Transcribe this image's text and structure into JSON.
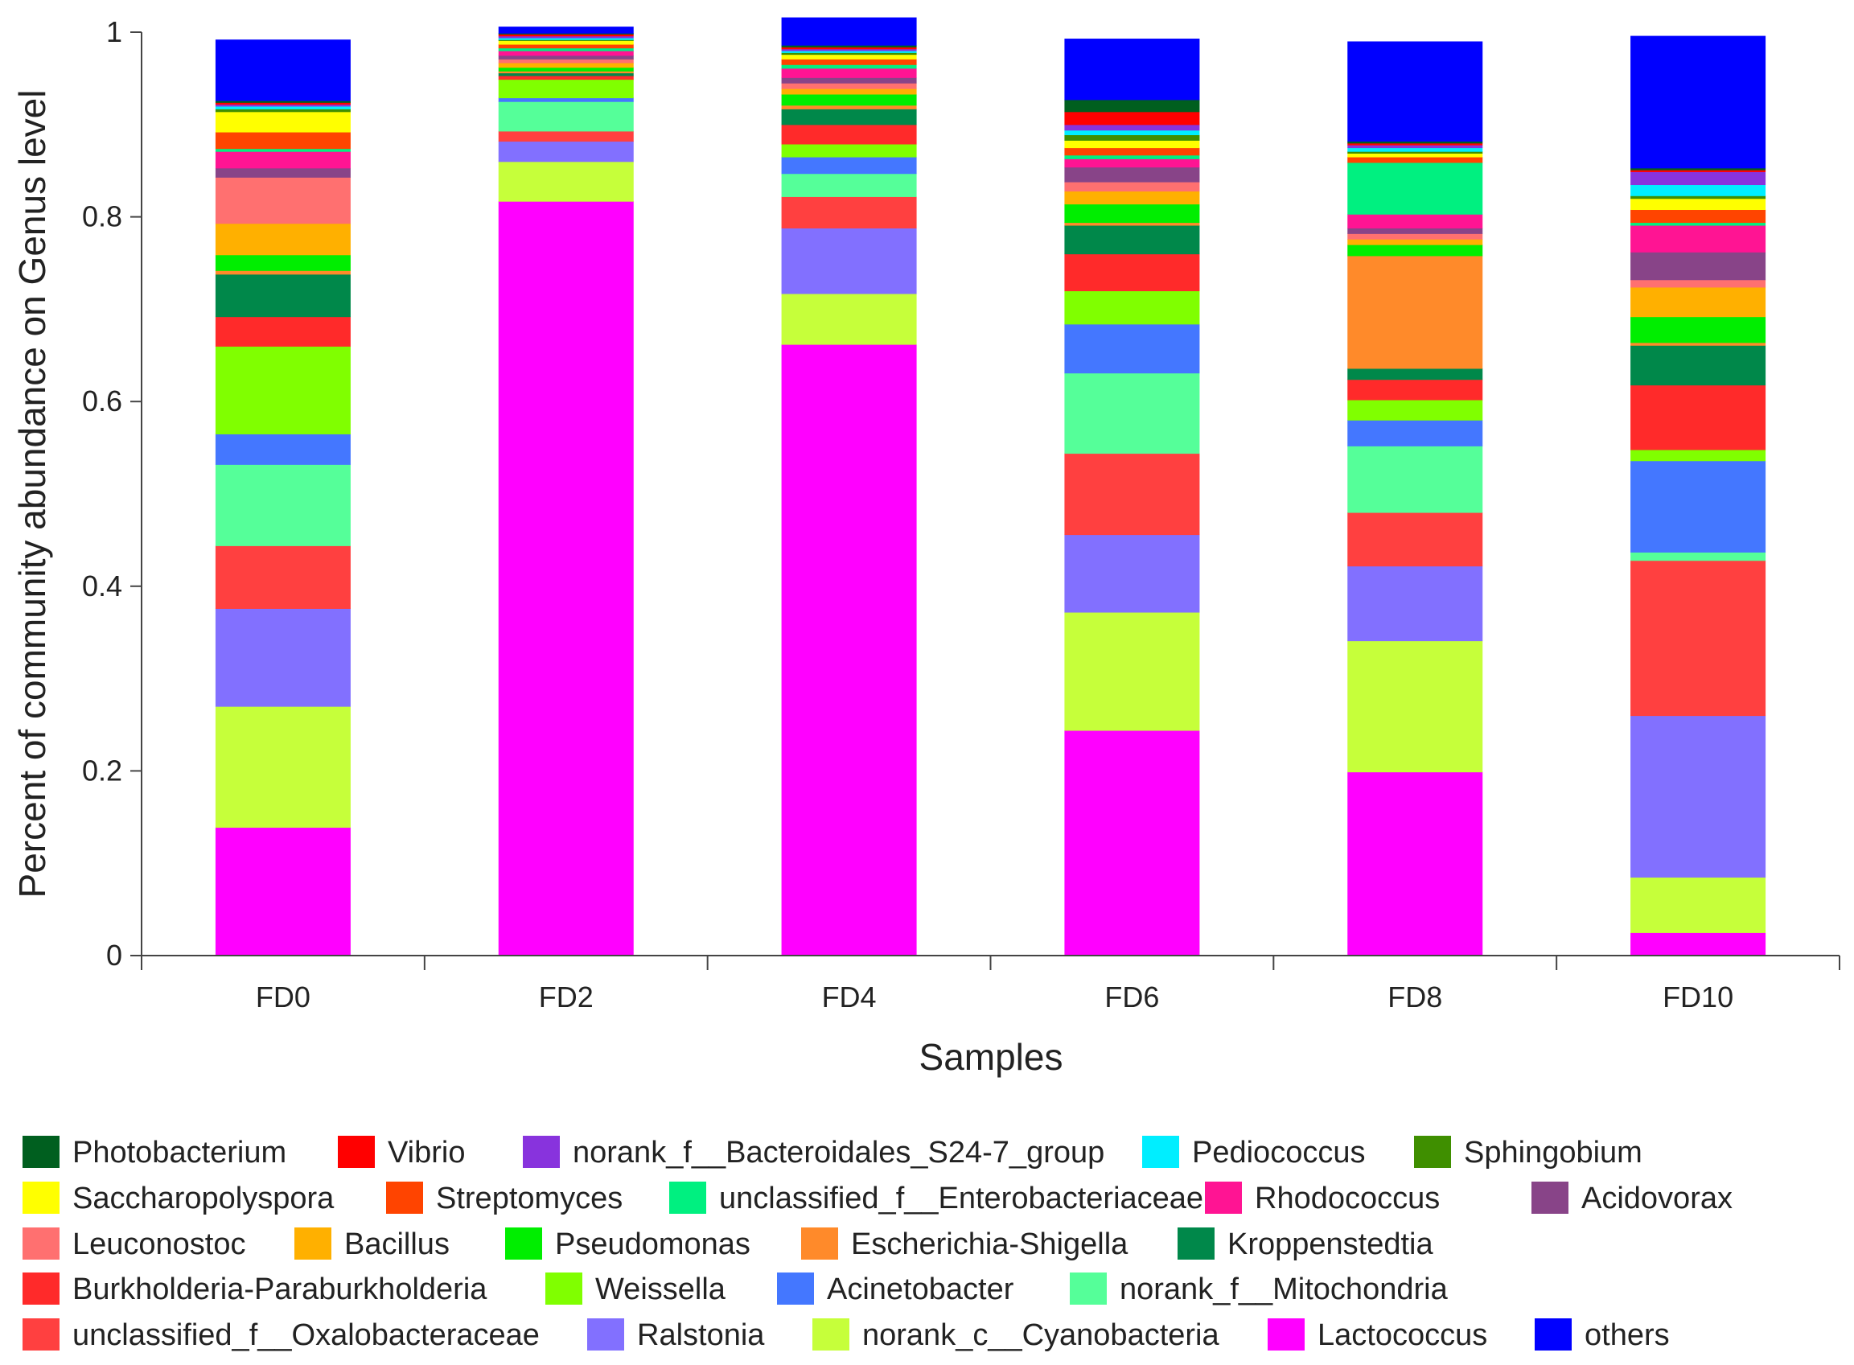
{
  "chart_data": {
    "type": "bar",
    "stacked": true,
    "title": "",
    "xlabel": "Samples",
    "ylabel": "Percent of community abundance on Genus level",
    "ylim": [
      0,
      1
    ],
    "yticks": [
      "0",
      "0.2",
      "0.4",
      "0.6",
      "0.8",
      "1"
    ],
    "ytick_values": [
      0,
      0.2,
      0.4,
      0.6,
      0.8,
      1
    ],
    "categories": [
      "FD0",
      "FD2",
      "FD4",
      "FD6",
      "FD8",
      "FD10"
    ],
    "legend_position": "bottom",
    "series": [
      {
        "name": "Lactococcus",
        "color": "#FF00FF",
        "values": [
          0.139,
          0.817,
          0.662,
          0.244,
          0.199,
          0.025
        ]
      },
      {
        "name": "norank_c__Cyanobacteria",
        "color": "#C6FF3A",
        "values": [
          0.131,
          0.043,
          0.055,
          0.128,
          0.142,
          0.06
        ]
      },
      {
        "name": "Ralstonia",
        "color": "#8270FF",
        "values": [
          0.106,
          0.022,
          0.071,
          0.084,
          0.081,
          0.175
        ]
      },
      {
        "name": "unclassified_f__Oxalobacteraceae",
        "color": "#FF4040",
        "values": [
          0.068,
          0.011,
          0.034,
          0.088,
          0.058,
          0.168
        ]
      },
      {
        "name": "norank_f__Mitochondria",
        "color": "#55FF99",
        "values": [
          0.088,
          0.032,
          0.025,
          0.087,
          0.072,
          0.009
        ]
      },
      {
        "name": "Acinetobacter",
        "color": "#4477FF",
        "values": [
          0.033,
          0.004,
          0.018,
          0.053,
          0.028,
          0.099
        ]
      },
      {
        "name": "Weissella",
        "color": "#80FF00",
        "values": [
          0.095,
          0.02,
          0.014,
          0.036,
          0.022,
          0.012
        ]
      },
      {
        "name": "Burkholderia-Paraburkholderia",
        "color": "#FF2A2A",
        "values": [
          0.032,
          0.004,
          0.021,
          0.04,
          0.022,
          0.07
        ]
      },
      {
        "name": "Kroppenstedtia",
        "color": "#00884A",
        "values": [
          0.046,
          0.003,
          0.017,
          0.031,
          0.012,
          0.043
        ]
      },
      {
        "name": "Escherichia-Shigella",
        "color": "#FF8A2A",
        "values": [
          0.004,
          0.002,
          0.004,
          0.003,
          0.122,
          0.003
        ]
      },
      {
        "name": "Pseudomonas",
        "color": "#00EE00",
        "values": [
          0.017,
          0.004,
          0.012,
          0.02,
          0.012,
          0.028
        ]
      },
      {
        "name": "Bacillus",
        "color": "#FFB000",
        "values": [
          0.034,
          0.005,
          0.006,
          0.014,
          0.006,
          0.032
        ]
      },
      {
        "name": "Leuconostoc",
        "color": "#FF7070",
        "values": [
          0.05,
          0.004,
          0.006,
          0.01,
          0.006,
          0.008
        ]
      },
      {
        "name": "Acidovorax",
        "color": "#884488",
        "values": [
          0.01,
          0.004,
          0.006,
          0.016,
          0.006,
          0.03
        ]
      },
      {
        "name": "Rhodococcus",
        "color": "#FF1493",
        "values": [
          0.018,
          0.005,
          0.01,
          0.009,
          0.015,
          0.029
        ]
      },
      {
        "name": "unclassified_f__Enterobacteriaceae",
        "color": "#00F080",
        "values": [
          0.003,
          0.003,
          0.004,
          0.004,
          0.056,
          0.003
        ]
      },
      {
        "name": "Streptomyces",
        "color": "#FF4400",
        "values": [
          0.018,
          0.004,
          0.006,
          0.008,
          0.006,
          0.014
        ]
      },
      {
        "name": "Saccharopolyspora",
        "color": "#FFFF00",
        "values": [
          0.022,
          0.004,
          0.005,
          0.008,
          0.004,
          0.012
        ]
      },
      {
        "name": "Sphingobium",
        "color": "#3F8F00",
        "values": [
          0.003,
          0.001,
          0.002,
          0.006,
          0.002,
          0.003
        ]
      },
      {
        "name": "Pediococcus",
        "color": "#00EEFF",
        "values": [
          0.003,
          0.002,
          0.002,
          0.005,
          0.004,
          0.012
        ]
      },
      {
        "name": "norank_f__Bacteroidales_S24-7_group",
        "color": "#8833DD",
        "values": [
          0.002,
          0.002,
          0.002,
          0.006,
          0.003,
          0.014
        ]
      },
      {
        "name": "Vibrio",
        "color": "#FF0000",
        "values": [
          0.002,
          0.002,
          0.002,
          0.014,
          0.002,
          0.002
        ]
      },
      {
        "name": "Photobacterium",
        "color": "#005F1F",
        "values": [
          0.002,
          0.001,
          0.002,
          0.013,
          0.002,
          0.002
        ]
      },
      {
        "name": "others",
        "color": "#0000FF",
        "values": [
          0.066,
          0.007,
          0.03,
          0.066,
          0.108,
          0.143
        ]
      }
    ],
    "legend_order": [
      [
        "Photobacterium",
        "Vibrio",
        "norank_f__Bacteroidales_S24-7_group",
        "Pediococcus",
        "Sphingobium"
      ],
      [
        "Saccharopolyspora",
        "Streptomyces",
        "unclassified_f__Enterobacteriaceae",
        "Rhodococcus",
        "Acidovorax"
      ],
      [
        "Leuconostoc",
        "Bacillus",
        "Pseudomonas",
        "Escherichia-Shigella",
        "Kroppenstedtia"
      ],
      [
        "Burkholderia-Paraburkholderia",
        "Weissella",
        "Acinetobacter",
        "norank_f__Mitochondria"
      ],
      [
        "unclassified_f__Oxalobacteraceae",
        "Ralstonia",
        "norank_c__Cyanobacteria",
        "Lactococcus",
        "others"
      ]
    ]
  }
}
